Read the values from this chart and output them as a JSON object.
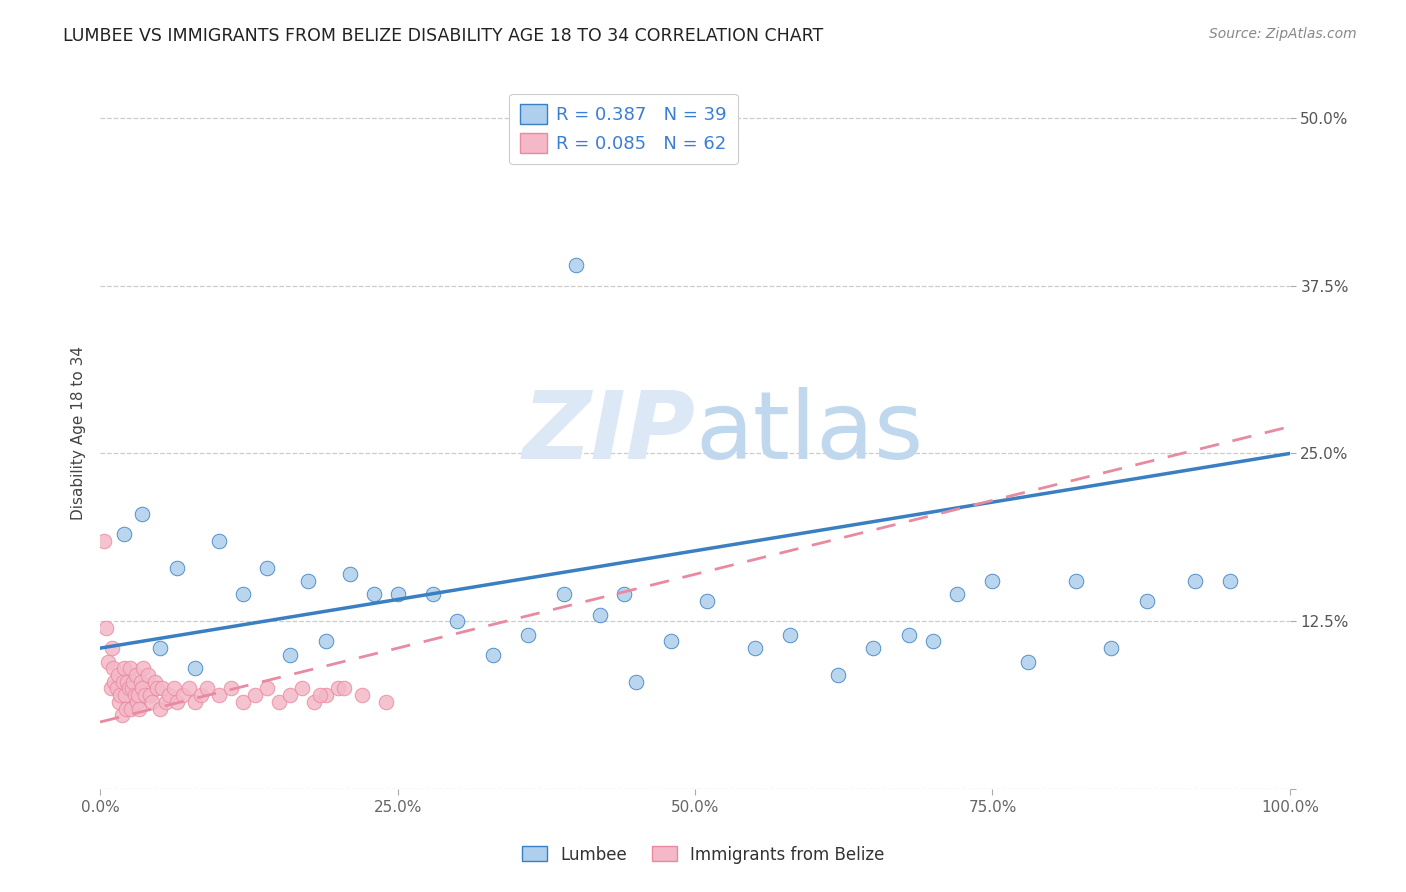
{
  "title": "LUMBEE VS IMMIGRANTS FROM BELIZE DISABILITY AGE 18 TO 34 CORRELATION CHART",
  "source_text": "Source: ZipAtlas.com",
  "ylabel": "Disability Age 18 to 34",
  "xlim": [
    0,
    100
  ],
  "ylim": [
    0,
    53
  ],
  "yticks": [
    0,
    12.5,
    25.0,
    37.5,
    50.0
  ],
  "xticks": [
    0,
    25,
    50,
    75,
    100
  ],
  "xtick_labels": [
    "0.0%",
    "25.0%",
    "50.0%",
    "75.0%",
    "100.0%"
  ],
  "ytick_labels": [
    "",
    "12.5%",
    "25.0%",
    "37.5%",
    "50.0%"
  ],
  "lumbee_R": 0.387,
  "lumbee_N": 39,
  "belize_R": 0.085,
  "belize_N": 62,
  "lumbee_color": "#aecfed",
  "belize_color": "#f4b8c8",
  "lumbee_line_color": "#3a7fc1",
  "belize_line_color": "#e88aa0",
  "legend_lumbee": "Lumbee",
  "legend_belize": "Immigrants from Belize",
  "lumbee_x": [
    2.0,
    3.5,
    5.0,
    6.5,
    8.0,
    10.0,
    12.0,
    14.0,
    16.0,
    17.5,
    19.0,
    21.0,
    23.0,
    25.0,
    28.0,
    30.0,
    33.0,
    36.0,
    39.0,
    42.0,
    45.0,
    48.0,
    51.0,
    40.0,
    44.0,
    55.0,
    58.0,
    62.0,
    65.0,
    68.0,
    70.0,
    72.0,
    75.0,
    78.0,
    82.0,
    85.0,
    88.0,
    92.0,
    95.0
  ],
  "lumbee_y": [
    19.0,
    20.5,
    10.5,
    16.5,
    9.0,
    18.5,
    14.5,
    16.5,
    10.0,
    15.5,
    11.0,
    16.0,
    14.5,
    14.5,
    14.5,
    12.5,
    10.0,
    11.5,
    14.5,
    13.0,
    8.0,
    11.0,
    14.0,
    39.0,
    14.5,
    10.5,
    11.5,
    8.5,
    10.5,
    11.5,
    11.0,
    14.5,
    15.5,
    9.5,
    15.5,
    10.5,
    14.0,
    15.5,
    15.5
  ],
  "belize_x": [
    0.3,
    0.5,
    0.7,
    0.9,
    1.0,
    1.1,
    1.2,
    1.4,
    1.5,
    1.6,
    1.7,
    1.8,
    1.9,
    2.0,
    2.1,
    2.2,
    2.3,
    2.4,
    2.5,
    2.6,
    2.7,
    2.8,
    2.9,
    3.0,
    3.1,
    3.2,
    3.3,
    3.4,
    3.5,
    3.6,
    3.8,
    4.0,
    4.2,
    4.4,
    4.6,
    4.8,
    5.0,
    5.2,
    5.5,
    5.8,
    6.2,
    6.5,
    7.0,
    7.5,
    8.0,
    8.5,
    9.0,
    10.0,
    11.0,
    12.0,
    13.0,
    14.0,
    15.0,
    16.0,
    17.0,
    18.0,
    19.0,
    20.0,
    22.0,
    24.0,
    20.5,
    18.5
  ],
  "belize_y": [
    18.5,
    12.0,
    9.5,
    7.5,
    10.5,
    9.0,
    8.0,
    7.5,
    8.5,
    6.5,
    7.0,
    5.5,
    8.0,
    9.0,
    7.0,
    6.0,
    8.0,
    7.5,
    9.0,
    6.0,
    7.5,
    8.0,
    7.0,
    8.5,
    6.5,
    7.0,
    6.0,
    8.0,
    7.5,
    9.0,
    7.0,
    8.5,
    7.0,
    6.5,
    8.0,
    7.5,
    6.0,
    7.5,
    6.5,
    7.0,
    7.5,
    6.5,
    7.0,
    7.5,
    6.5,
    7.0,
    7.5,
    7.0,
    7.5,
    6.5,
    7.0,
    7.5,
    6.5,
    7.0,
    7.5,
    6.5,
    7.0,
    7.5,
    7.0,
    6.5,
    7.5,
    7.0
  ],
  "lumbee_trend_x0": 0,
  "lumbee_trend_x1": 100,
  "lumbee_trend_y0": 10.5,
  "lumbee_trend_y1": 25.0,
  "belize_trend_x0": 0,
  "belize_trend_x1": 100,
  "belize_trend_y0": 5.0,
  "belize_trend_y1": 27.0
}
